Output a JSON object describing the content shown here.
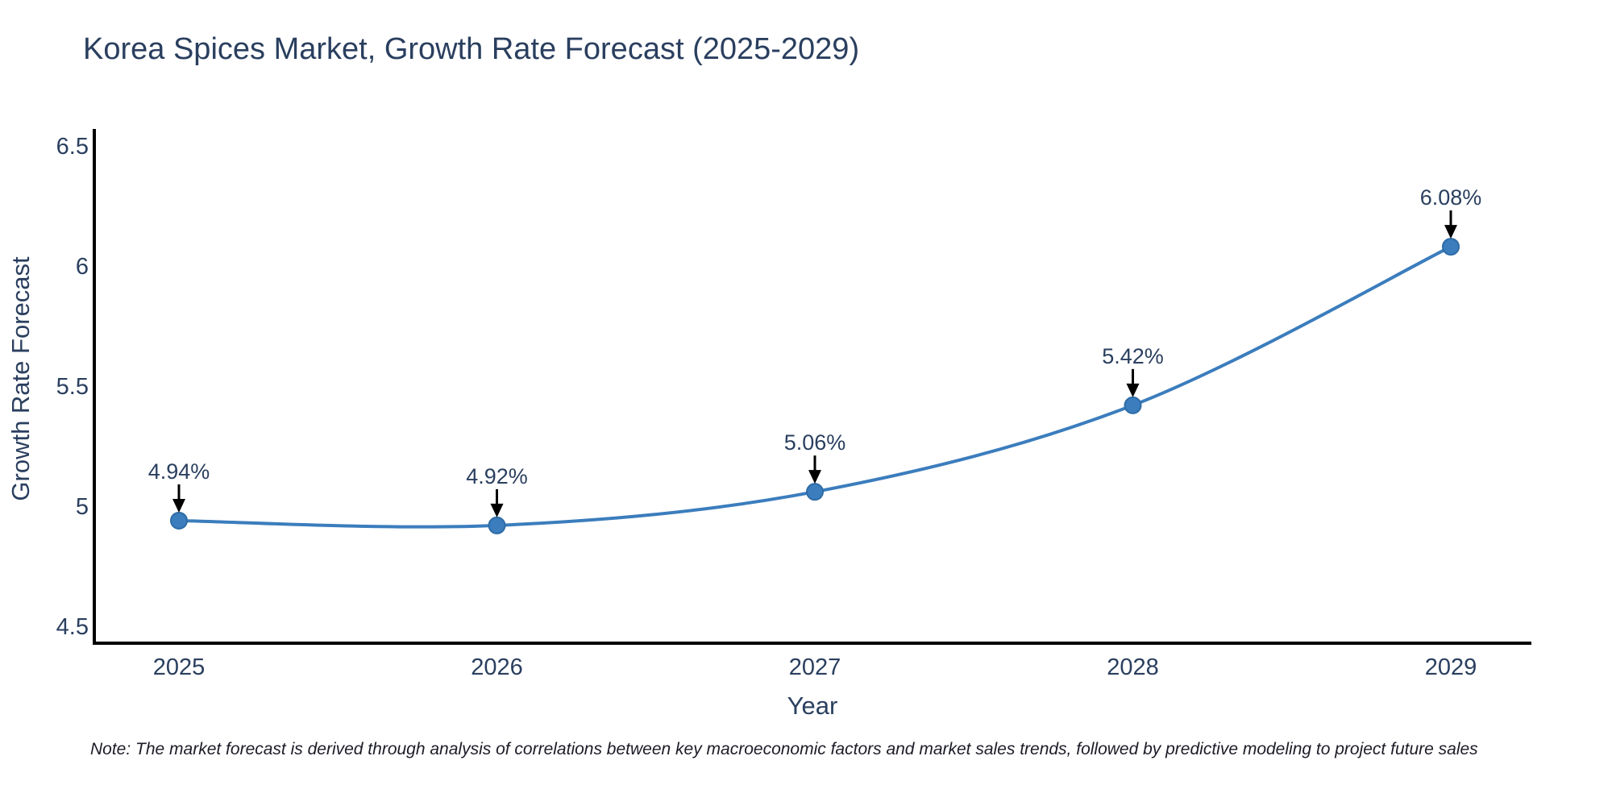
{
  "chart_data": {
    "type": "line",
    "title": "Korea Spices Market, Growth Rate Forecast (2025-2029)",
    "xlabel": "Year",
    "ylabel": "Growth Rate Forecast",
    "categories": [
      "2025",
      "2026",
      "2027",
      "2028",
      "2029"
    ],
    "series": [
      {
        "name": "Growth Rate Forecast",
        "values": [
          4.94,
          4.92,
          5.06,
          5.42,
          6.08
        ]
      }
    ],
    "point_labels": [
      "4.94%",
      "4.92%",
      "5.06%",
      "5.42%",
      "6.08%"
    ],
    "yticks": [
      4.5,
      5,
      5.5,
      6,
      6.5
    ],
    "ytick_labels": [
      "4.5",
      "5",
      "5.5",
      "6",
      "6.5"
    ],
    "ylim": [
      4.43,
      6.57
    ],
    "grid": false,
    "legend_position": "none",
    "line_shape": "spline",
    "colors": {
      "line": "#3b7dbd",
      "marker_fill": "#3b7dbd",
      "marker_edge": "#2e6ca6",
      "axis_line": "#000000",
      "tick_text": "#2a3f5f",
      "annotation_text": "#2a3f5f",
      "annotation_arrow": "#000000"
    }
  },
  "note": {
    "text": "Note: The market forecast is derived through analysis of correlations between key macroeconomic factors and market sales trends, followed by predictive modeling to project future sales"
  }
}
